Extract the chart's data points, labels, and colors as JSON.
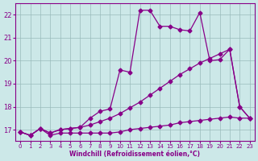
{
  "xlabel": "Windchill (Refroidissement éolien,°C)",
  "background_color": "#cce8e8",
  "grid_color": "#99bbbb",
  "line_color": "#880088",
  "xlim": [
    -0.5,
    23.5
  ],
  "ylim": [
    16.5,
    22.5
  ],
  "xticks": [
    0,
    1,
    2,
    3,
    4,
    5,
    6,
    7,
    8,
    9,
    10,
    11,
    12,
    13,
    14,
    15,
    16,
    17,
    18,
    19,
    20,
    21,
    22,
    23
  ],
  "yticks": [
    17,
    18,
    19,
    20,
    21,
    22
  ],
  "line1_x": [
    0,
    1,
    2,
    3,
    4,
    5,
    6,
    7,
    8,
    9,
    10,
    11,
    12,
    13,
    14,
    15,
    16,
    17,
    18,
    19,
    20,
    21,
    22,
    23
  ],
  "line1_y": [
    16.9,
    16.75,
    17.05,
    16.75,
    16.85,
    16.85,
    16.85,
    16.85,
    16.85,
    16.85,
    16.9,
    17.0,
    17.05,
    17.1,
    17.15,
    17.2,
    17.3,
    17.35,
    17.4,
    17.45,
    17.5,
    17.55,
    17.5,
    17.5
  ],
  "line2_x": [
    0,
    1,
    2,
    3,
    4,
    5,
    6,
    7,
    8,
    9,
    10,
    11,
    12,
    13,
    14,
    15,
    16,
    17,
    18,
    19,
    20,
    21,
    22,
    23
  ],
  "line2_y": [
    16.9,
    16.75,
    17.05,
    16.85,
    17.0,
    17.05,
    17.1,
    17.2,
    17.35,
    17.5,
    17.7,
    17.95,
    18.2,
    18.5,
    18.8,
    19.1,
    19.4,
    19.65,
    19.9,
    20.1,
    20.3,
    20.5,
    18.0,
    17.5
  ],
  "line3_x": [
    0,
    1,
    2,
    3,
    4,
    5,
    6,
    7,
    8,
    9,
    10,
    11,
    12,
    13,
    14,
    15,
    16,
    17,
    18,
    19,
    20,
    21,
    22,
    23
  ],
  "line3_y": [
    16.9,
    16.75,
    17.05,
    16.85,
    17.0,
    17.05,
    17.1,
    17.5,
    17.8,
    17.9,
    19.6,
    19.5,
    22.2,
    22.2,
    21.5,
    21.5,
    21.35,
    21.3,
    22.1,
    20.0,
    20.05,
    20.5,
    18.0,
    17.5
  ],
  "marker": "D",
  "marker_size": 2.5,
  "linewidth": 0.9
}
